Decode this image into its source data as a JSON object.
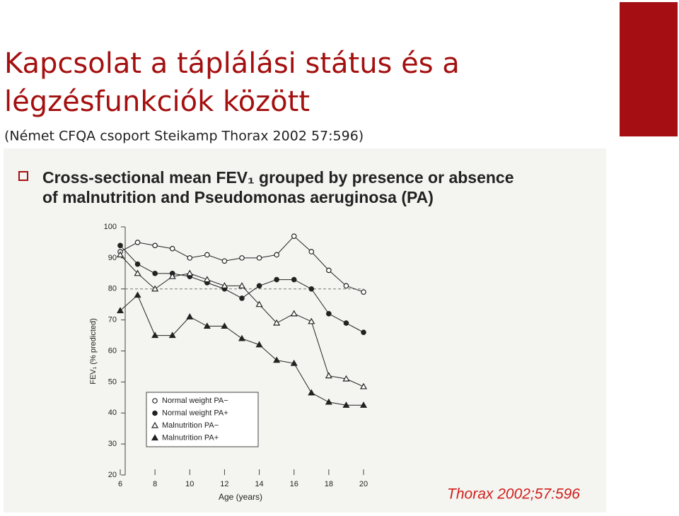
{
  "slide": {
    "title": [
      "Kapcsolat a táplálási státus és a",
      "légzésfunkciók között"
    ],
    "subtitle": "(Német CFQA csoport Steikamp Thorax 2002 57:596)"
  },
  "chart_data": {
    "type": "line",
    "title": [
      "Cross-sectional mean FEV₁ grouped by presence or absence",
      "of malnutrition and Pseudomonas aeruginosa (PA)"
    ],
    "x_label": "Age (years)",
    "y_label": "FEV₁ (% predicted)",
    "x": [
      6,
      7,
      8,
      9,
      10,
      11,
      12,
      13,
      14,
      15,
      16,
      17,
      18,
      19,
      20
    ],
    "series": [
      {
        "name": "Normal weight PA−",
        "color": "#222222",
        "marker": "circle-open",
        "values": [
          92,
          95,
          94,
          93,
          90,
          91,
          89,
          90,
          90,
          91,
          97,
          92,
          86,
          81,
          79
        ]
      },
      {
        "name": "Normal weight PA+",
        "color": "#222222",
        "marker": "circle-filled",
        "values": [
          94,
          88,
          85,
          85,
          84,
          82,
          80,
          77,
          81,
          83,
          83,
          80,
          72,
          69,
          66
        ]
      },
      {
        "name": "Malnutrition PA−",
        "color": "#222222",
        "marker": "triangle-open",
        "values": [
          91,
          85,
          80,
          84,
          85,
          83,
          81,
          81,
          75,
          69,
          72,
          69.5,
          52,
          51,
          48.5
        ]
      },
      {
        "name": "Malnutrition PA+",
        "color": "#222222",
        "marker": "triangle-filled",
        "values": [
          73,
          78,
          65,
          65,
          71,
          68,
          68,
          64,
          62,
          57,
          56,
          46.5,
          43.5,
          42.5,
          42.5
        ]
      }
    ],
    "reference_line": 80,
    "xlim": [
      6,
      20
    ],
    "xticks": [
      6,
      8,
      10,
      12,
      14,
      16,
      18,
      20
    ],
    "ylim": [
      20,
      100
    ],
    "yticks": [
      20,
      30,
      40,
      50,
      60,
      70,
      80,
      90,
      100
    ],
    "legend": "lower left",
    "source": "Thorax 2002;57:596"
  }
}
